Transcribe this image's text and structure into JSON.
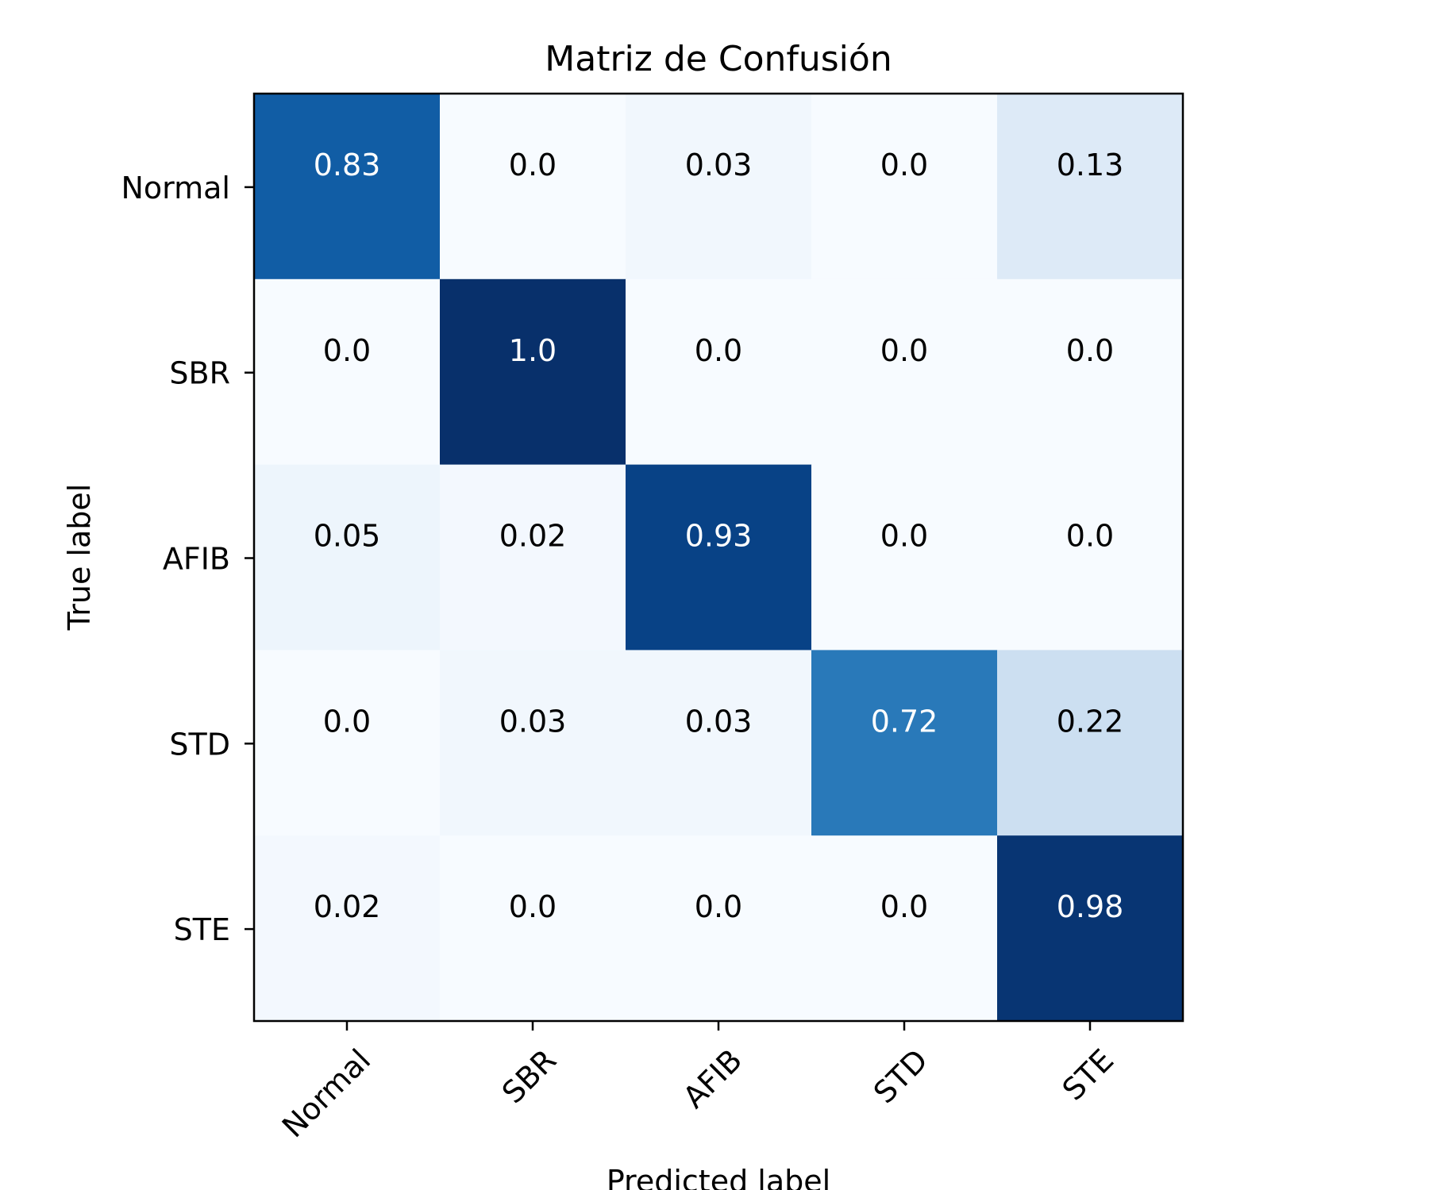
{
  "chart_data": {
    "type": "heatmap",
    "title": "Matriz de Confusión",
    "xlabel": "Predicted label",
    "ylabel": "True label",
    "x_categories": [
      "Normal",
      "SBR",
      "AFIB",
      "STD",
      "STE"
    ],
    "y_categories": [
      "Normal",
      "SBR",
      "AFIB",
      "STD",
      "STE"
    ],
    "cell_labels": [
      [
        "0.83",
        "0.0",
        "0.03",
        "0.0",
        "0.13"
      ],
      [
        "0.0",
        "1.0",
        "0.0",
        "0.0",
        "0.0"
      ],
      [
        "0.05",
        "0.02",
        "0.93",
        "0.0",
        "0.0"
      ],
      [
        "0.0",
        "0.03",
        "0.03",
        "0.72",
        "0.22"
      ],
      [
        "0.02",
        "0.0",
        "0.0",
        "0.0",
        "0.98"
      ]
    ],
    "values": [
      [
        0.83,
        0.0,
        0.03,
        0.0,
        0.13
      ],
      [
        0.0,
        1.0,
        0.0,
        0.0,
        0.0
      ],
      [
        0.05,
        0.02,
        0.93,
        0.0,
        0.0
      ],
      [
        0.0,
        0.03,
        0.03,
        0.72,
        0.22
      ],
      [
        0.02,
        0.0,
        0.0,
        0.0,
        0.98
      ]
    ],
    "colormap": "Blues",
    "color_range": [
      0,
      1
    ],
    "grid": false
  }
}
